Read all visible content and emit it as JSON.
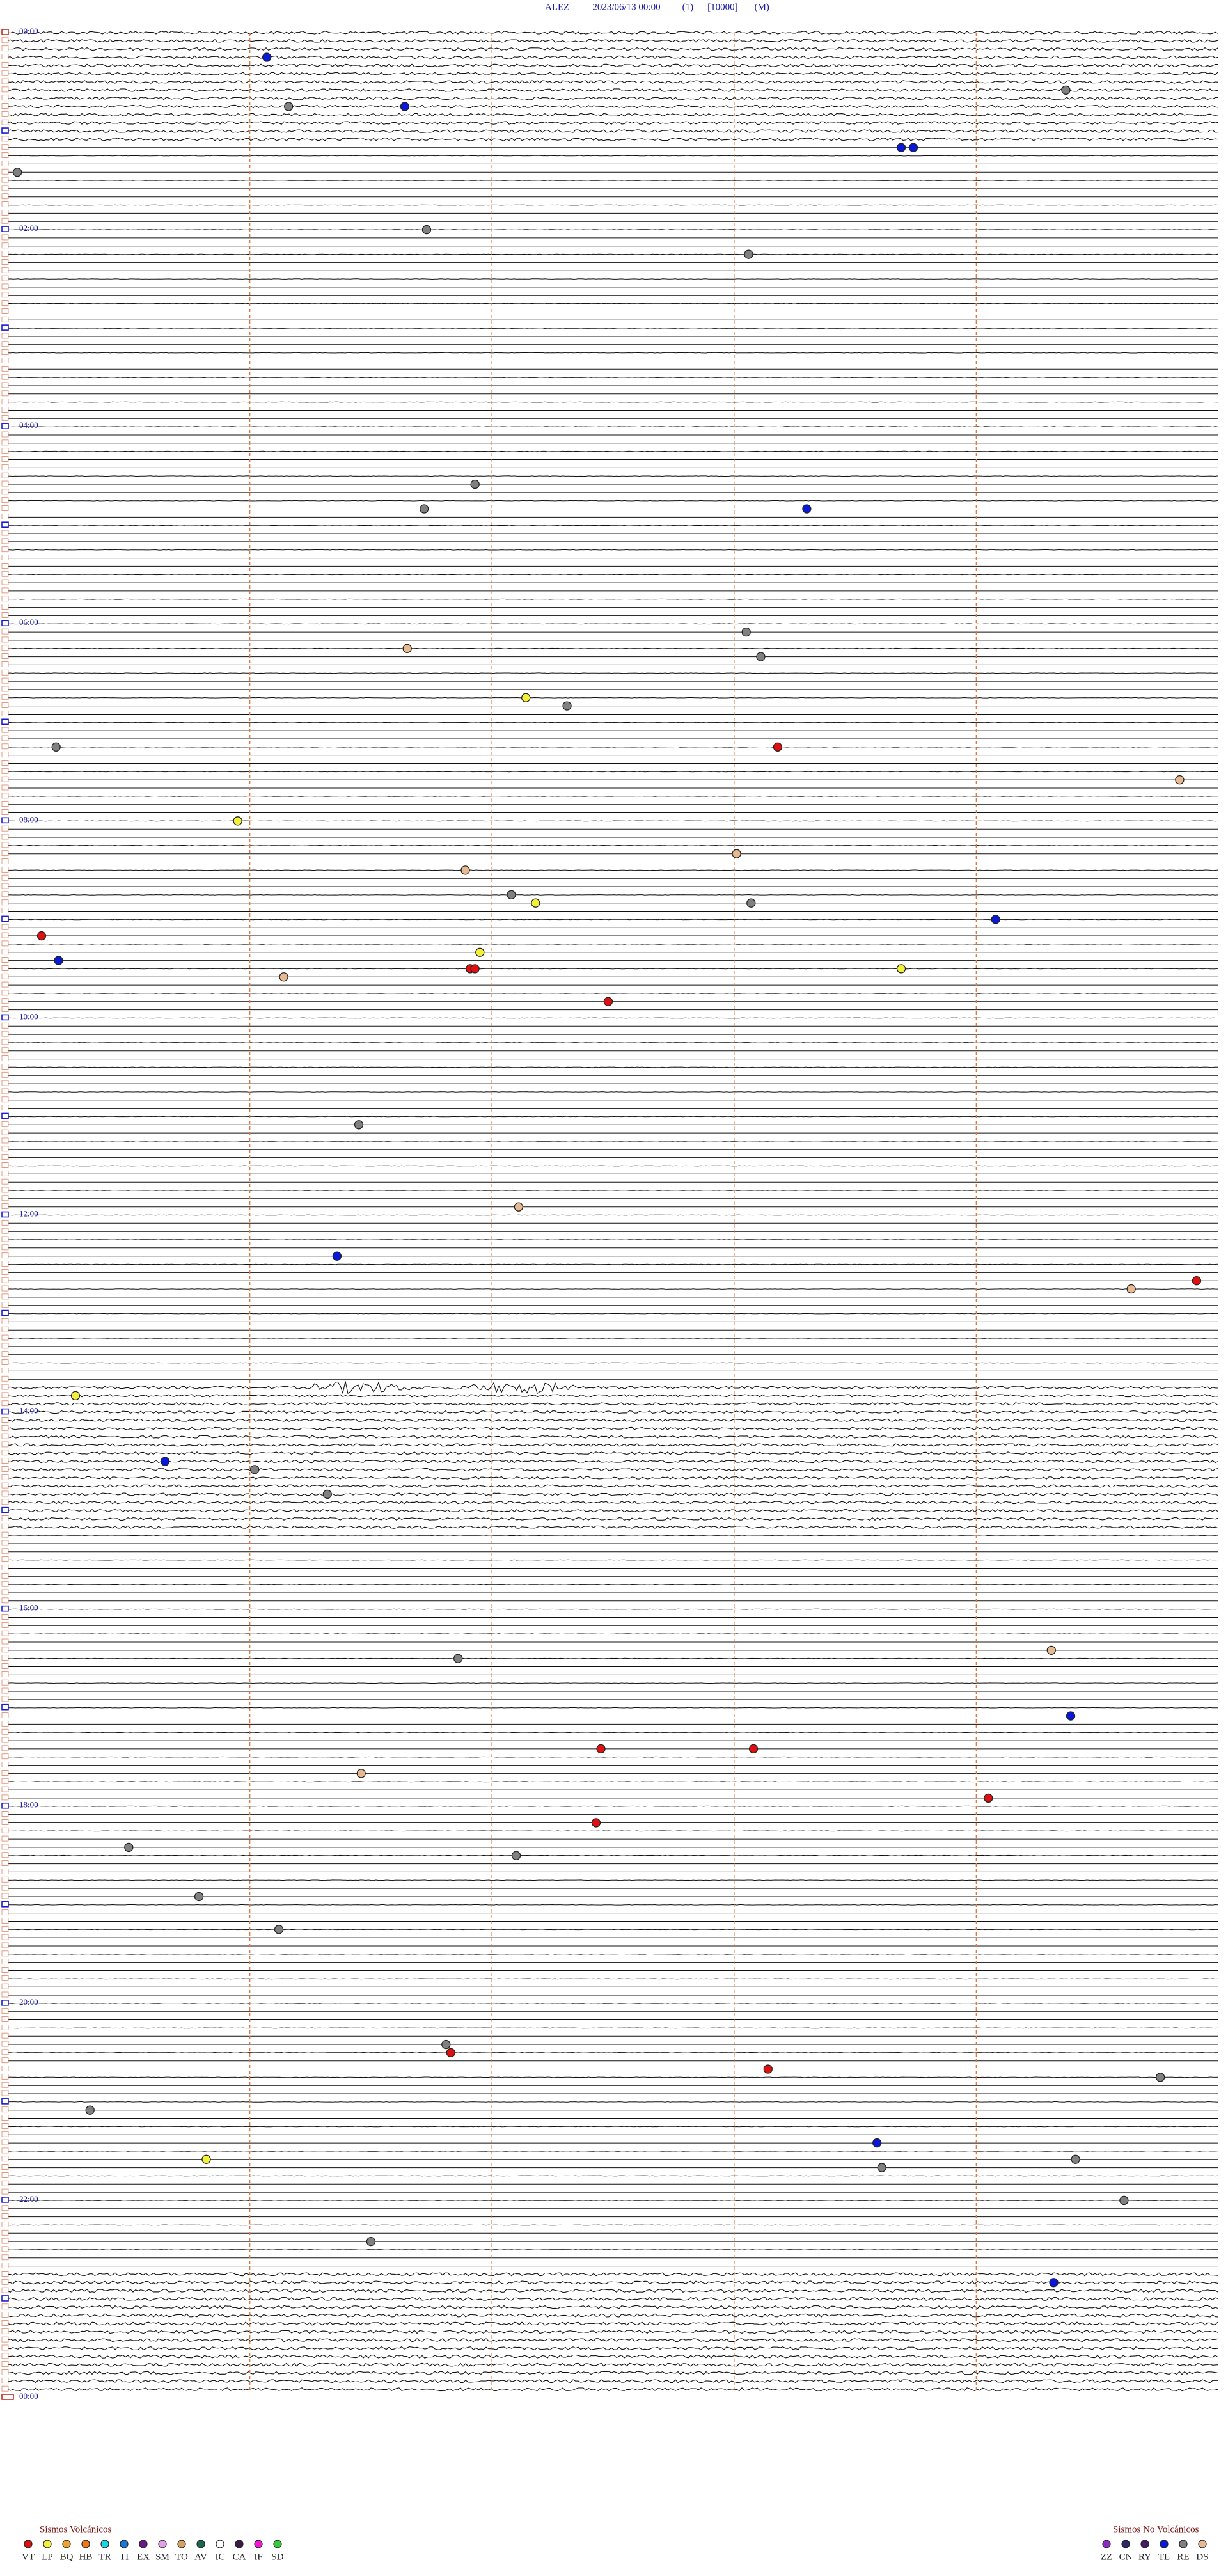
{
  "header": {
    "title": [
      "ALEZ",
      "2023/06/13 00:00",
      "(1)",
      "[10000]",
      "(M)"
    ]
  },
  "hours": [
    "00:00",
    "02:00",
    "04:00",
    "06:00",
    "08:00",
    "10:00",
    "12:00",
    "14:00",
    "16:00",
    "18:00",
    "20:00",
    "22:00",
    "00:00"
  ],
  "legend": {
    "volcanic": {
      "title": "Sismos Volcánicos",
      "items": [
        {
          "code": "VT",
          "color": "#e01010"
        },
        {
          "code": "LP",
          "color": "#f2f03a"
        },
        {
          "code": "BQ",
          "color": "#f0a030"
        },
        {
          "code": "HB",
          "color": "#f07818"
        },
        {
          "code": "TR",
          "color": "#18d8e8"
        },
        {
          "code": "TI",
          "color": "#1878e0"
        },
        {
          "code": "EX",
          "color": "#6a1a8a"
        },
        {
          "code": "SM",
          "color": "#e0a0e8"
        },
        {
          "code": "TO",
          "color": "#d8a060"
        },
        {
          "code": "AV",
          "color": "#1a6a4a"
        },
        {
          "code": "IC",
          "color": "#ffffff"
        },
        {
          "code": "CA",
          "color": "#3a1a4a"
        },
        {
          "code": "IF",
          "color": "#f018d8"
        },
        {
          "code": "SD",
          "color": "#38c838"
        }
      ]
    },
    "non_volcanic": {
      "title": "Sismos No Volcánicos",
      "items": [
        {
          "code": "ZZ",
          "color": "#8a28c8"
        },
        {
          "code": "CN",
          "color": "#2a2a6a"
        },
        {
          "code": "RY",
          "color": "#4a1a6a"
        },
        {
          "code": "TL",
          "color": "#0a18d8"
        },
        {
          "code": "RE",
          "color": "#808080"
        },
        {
          "code": "DS",
          "color": "#e8b890"
        }
      ]
    }
  },
  "events": [
    {
      "row": 3,
      "minute": 1.07,
      "type": "TL"
    },
    {
      "row": 9,
      "minute": 1.16,
      "type": "RE"
    },
    {
      "row": 9,
      "minute": 1.64,
      "type": "TL"
    },
    {
      "row": 7,
      "minute": 4.37,
      "type": "RE"
    },
    {
      "row": 14,
      "minute": 3.69,
      "type": "TL"
    },
    {
      "row": 14,
      "minute": 3.74,
      "type": "TL"
    },
    {
      "row": 17,
      "minute": 0.04,
      "type": "RE"
    },
    {
      "row": 24,
      "minute": 1.73,
      "type": "RE"
    },
    {
      "row": 27,
      "minute": 3.06,
      "type": "RE"
    },
    {
      "row": 55,
      "minute": 1.93,
      "type": "RE"
    },
    {
      "row": 58,
      "minute": 1.72,
      "type": "RE"
    },
    {
      "row": 58,
      "minute": 3.3,
      "type": "TL"
    },
    {
      "row": 73,
      "minute": 3.05,
      "type": "RE"
    },
    {
      "row": 75,
      "minute": 1.65,
      "type": "DS"
    },
    {
      "row": 76,
      "minute": 3.11,
      "type": "RE"
    },
    {
      "row": 81,
      "minute": 2.14,
      "type": "LP"
    },
    {
      "row": 82,
      "minute": 2.31,
      "type": "RE"
    },
    {
      "row": 87,
      "minute": 0.2,
      "type": "RE"
    },
    {
      "row": 87,
      "minute": 3.18,
      "type": "VT"
    },
    {
      "row": 91,
      "minute": 4.84,
      "type": "DS"
    },
    {
      "row": 96,
      "minute": 0.95,
      "type": "LP"
    },
    {
      "row": 100,
      "minute": 3.01,
      "type": "DS"
    },
    {
      "row": 102,
      "minute": 1.89,
      "type": "DS"
    },
    {
      "row": 105,
      "minute": 2.08,
      "type": "RE"
    },
    {
      "row": 106,
      "minute": 2.18,
      "type": "LP"
    },
    {
      "row": 106,
      "minute": 3.07,
      "type": "RE"
    },
    {
      "row": 108,
      "minute": 4.08,
      "type": "TL"
    },
    {
      "row": 110,
      "minute": 0.14,
      "type": "VT"
    },
    {
      "row": 112,
      "minute": 1.95,
      "type": "LP"
    },
    {
      "row": 113,
      "minute": 0.21,
      "type": "TL"
    },
    {
      "row": 114,
      "minute": 1.91,
      "type": "VT"
    },
    {
      "row": 114,
      "minute": 1.93,
      "type": "VT"
    },
    {
      "row": 114,
      "minute": 3.69,
      "type": "LP"
    },
    {
      "row": 115,
      "minute": 1.14,
      "type": "DS"
    },
    {
      "row": 118,
      "minute": 2.48,
      "type": "VT"
    },
    {
      "row": 133,
      "minute": 1.45,
      "type": "RE"
    },
    {
      "row": 143,
      "minute": 2.11,
      "type": "DS"
    },
    {
      "row": 149,
      "minute": 1.36,
      "type": "TL"
    },
    {
      "row": 152,
      "minute": 4.91,
      "type": "VT"
    },
    {
      "row": 153,
      "minute": 4.64,
      "type": "DS"
    },
    {
      "row": 166,
      "minute": 0.28,
      "type": "LP"
    },
    {
      "row": 174,
      "minute": 0.65,
      "type": "TL"
    },
    {
      "row": 175,
      "minute": 1.02,
      "type": "RE"
    },
    {
      "row": 178,
      "minute": 1.32,
      "type": "RE"
    },
    {
      "row": 197,
      "minute": 4.31,
      "type": "DS"
    },
    {
      "row": 198,
      "minute": 1.86,
      "type": "RE"
    },
    {
      "row": 205,
      "minute": 4.39,
      "type": "TL"
    },
    {
      "row": 209,
      "minute": 2.45,
      "type": "VT"
    },
    {
      "row": 209,
      "minute": 3.08,
      "type": "VT"
    },
    {
      "row": 212,
      "minute": 1.46,
      "type": "DS"
    },
    {
      "row": 215,
      "minute": 4.05,
      "type": "VT"
    },
    {
      "row": 218,
      "minute": 2.43,
      "type": "VT"
    },
    {
      "row": 221,
      "minute": 0.5,
      "type": "RE"
    },
    {
      "row": 222,
      "minute": 2.1,
      "type": "RE"
    },
    {
      "row": 227,
      "minute": 0.79,
      "type": "RE"
    },
    {
      "row": 231,
      "minute": 1.12,
      "type": "RE"
    },
    {
      "row": 245,
      "minute": 1.81,
      "type": "RE"
    },
    {
      "row": 246,
      "minute": 1.83,
      "type": "VT"
    },
    {
      "row": 248,
      "minute": 3.14,
      "type": "VT"
    },
    {
      "row": 249,
      "minute": 4.76,
      "type": "RE"
    },
    {
      "row": 253,
      "minute": 0.34,
      "type": "RE"
    },
    {
      "row": 257,
      "minute": 3.59,
      "type": "TL"
    },
    {
      "row": 259,
      "minute": 0.82,
      "type": "LP"
    },
    {
      "row": 259,
      "minute": 4.41,
      "type": "RE"
    },
    {
      "row": 260,
      "minute": 3.61,
      "type": "RE"
    },
    {
      "row": 264,
      "minute": 4.61,
      "type": "RE"
    },
    {
      "row": 269,
      "minute": 1.5,
      "type": "RE"
    },
    {
      "row": 274,
      "minute": 4.32,
      "type": "TL"
    }
  ]
}
